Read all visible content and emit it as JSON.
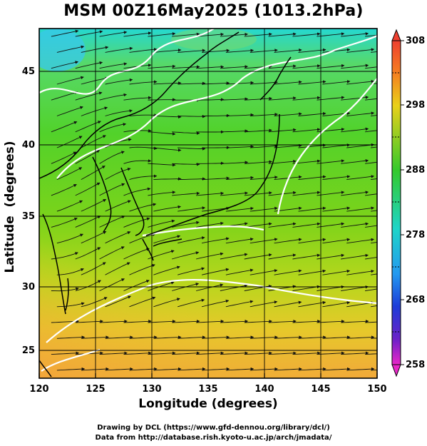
{
  "title": "MSM 00Z16May2025 (1013.2hPa)",
  "x_axis": {
    "label": "Longitude (degrees)",
    "ticks": [
      "120",
      "125",
      "130",
      "135",
      "140",
      "145",
      "150"
    ]
  },
  "y_axis": {
    "label": "Latitude  (degrees)",
    "ticks": [
      "25",
      "30",
      "35",
      "40",
      "45"
    ]
  },
  "colorbar": {
    "ticks": [
      "308",
      "298",
      "288",
      "278",
      "268",
      "258"
    ],
    "min": 258,
    "max": 308
  },
  "credits": [
    "Drawing by DCL (https://www.gfd-dennou.org/library/dcl/)",
    "Data from http://database.rish.kyoto-u.ac.jp/arch/jmadata/"
  ],
  "map": {
    "lon_range": [
      120,
      150
    ],
    "lat_range": [
      22.4,
      47.6
    ],
    "field": "temperature with wind streamlines",
    "colors": {
      "warm": "#f5a623",
      "mid": "#7ed321",
      "cool": "#2fd3c0",
      "land_line": "#000000",
      "contour": "#ffffff"
    }
  }
}
